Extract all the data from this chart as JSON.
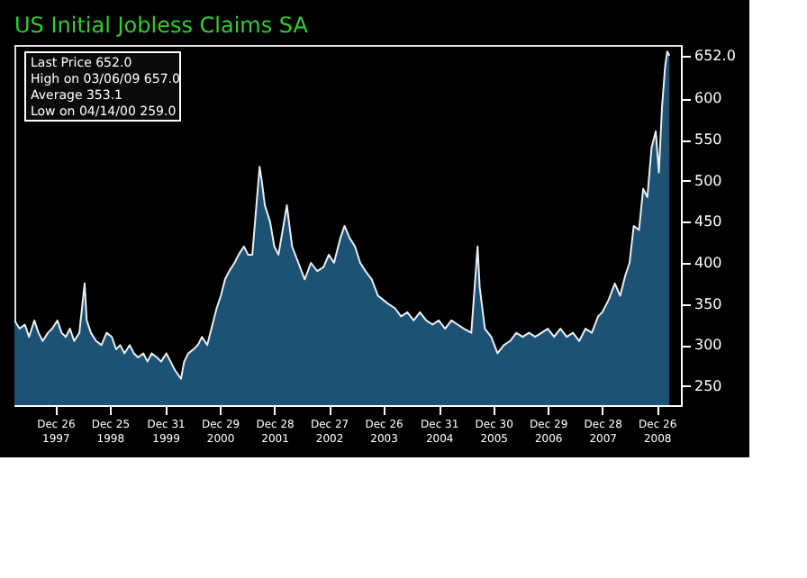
{
  "chart_data": {
    "type": "area",
    "title": "US Initial Jobless Claims SA",
    "annotations": [
      "Last Price 652.0",
      "High on 03/06/09 657.0",
      "Average 353.1",
      "Low on 04/14/00 259.0"
    ],
    "x": [
      "1997-03-28",
      "1997-05-02",
      "1997-06-06",
      "1997-07-04",
      "1997-08-08",
      "1997-09-05",
      "1997-10-03",
      "1997-11-07",
      "1997-12-05",
      "1998-01-09",
      "1998-02-06",
      "1998-03-06",
      "1998-04-03",
      "1998-05-01",
      "1998-06-05",
      "1998-07-10",
      "1998-07-24",
      "1998-08-21",
      "1998-09-25",
      "1998-10-30",
      "1998-12-04",
      "1999-01-08",
      "1999-02-05",
      "1999-03-05",
      "1999-04-02",
      "1999-05-07",
      "1999-06-04",
      "1999-07-02",
      "1999-08-06",
      "1999-09-03",
      "1999-10-01",
      "1999-11-05",
      "1999-12-03",
      "2000-01-07",
      "2000-02-04",
      "2000-03-03",
      "2000-04-14",
      "2000-05-05",
      "2000-06-02",
      "2000-07-07",
      "2000-08-04",
      "2000-09-01",
      "2000-10-06",
      "2000-11-03",
      "2000-12-08",
      "2001-01-05",
      "2001-02-02",
      "2001-03-02",
      "2001-04-06",
      "2001-05-04",
      "2001-06-08",
      "2001-07-06",
      "2001-08-03",
      "2001-09-21",
      "2001-10-05",
      "2001-10-26",
      "2001-11-30",
      "2001-12-28",
      "2002-01-25",
      "2002-03-22",
      "2002-04-26",
      "2002-06-07",
      "2002-07-19",
      "2002-08-30",
      "2002-10-11",
      "2002-11-22",
      "2002-12-27",
      "2003-01-31",
      "2003-03-14",
      "2003-04-11",
      "2003-05-16",
      "2003-06-20",
      "2003-07-25",
      "2003-08-29",
      "2003-10-10",
      "2003-11-21",
      "2003-12-26",
      "2004-01-30",
      "2004-03-12",
      "2004-04-23",
      "2004-06-04",
      "2004-07-16",
      "2004-08-27",
      "2004-10-08",
      "2004-11-19",
      "2004-12-31",
      "2005-02-11",
      "2005-03-25",
      "2005-05-06",
      "2005-06-17",
      "2005-08-05",
      "2005-09-16",
      "2005-09-30",
      "2005-11-04",
      "2005-12-16",
      "2006-01-27",
      "2006-03-10",
      "2006-04-21",
      "2006-06-02",
      "2006-07-14",
      "2006-08-25",
      "2006-10-06",
      "2006-11-17",
      "2006-12-29",
      "2007-02-09",
      "2007-03-23",
      "2007-05-04",
      "2007-06-15",
      "2007-07-27",
      "2007-09-07",
      "2007-10-19",
      "2007-11-30",
      "2007-12-28",
      "2008-02-08",
      "2008-03-21",
      "2008-04-25",
      "2008-05-30",
      "2008-06-27",
      "2008-07-25",
      "2008-08-29",
      "2008-09-26",
      "2008-10-24",
      "2008-11-21",
      "2008-12-19",
      "2009-01-09",
      "2009-01-30",
      "2009-02-20",
      "2009-03-06",
      "2009-03-20"
    ],
    "series": [
      {
        "color": "#1e5274",
        "values": [
          330,
          320,
          325,
          310,
          330,
          315,
          305,
          315,
          320,
          330,
          315,
          310,
          320,
          305,
          315,
          375,
          330,
          315,
          305,
          300,
          315,
          310,
          295,
          300,
          290,
          300,
          290,
          285,
          290,
          280,
          290,
          285,
          280,
          290,
          280,
          270,
          259,
          280,
          290,
          295,
          300,
          310,
          300,
          320,
          345,
          360,
          380,
          390,
          400,
          410,
          420,
          410,
          410,
          517,
          500,
          470,
          450,
          420,
          410,
          470,
          420,
          400,
          380,
          400,
          390,
          395,
          410,
          400,
          430,
          445,
          430,
          420,
          400,
          390,
          380,
          360,
          355,
          350,
          345,
          335,
          340,
          330,
          340,
          330,
          325,
          330,
          320,
          330,
          325,
          320,
          315,
          420,
          370,
          320,
          310,
          290,
          300,
          305,
          315,
          310,
          315,
          310,
          315,
          320,
          310,
          320,
          310,
          315,
          305,
          320,
          315,
          335,
          340,
          355,
          375,
          360,
          385,
          400,
          445,
          440,
          490,
          480,
          540,
          560,
          510,
          590,
          640,
          657,
          652
        ]
      }
    ],
    "xlim": [
      "1997-03-28",
      "2009-06-05"
    ],
    "xticks": [
      {
        "value": "1997-12-26",
        "label": "Dec 26\n1997"
      },
      {
        "value": "1998-12-25",
        "label": "Dec 25\n1998"
      },
      {
        "value": "1999-12-31",
        "label": "Dec 31\n1999"
      },
      {
        "value": "2000-12-29",
        "label": "Dec 29\n2000"
      },
      {
        "value": "2001-12-28",
        "label": "Dec 28\n2001"
      },
      {
        "value": "2002-12-27",
        "label": "Dec 27\n2002"
      },
      {
        "value": "2003-12-26",
        "label": "Dec 26\n2003"
      },
      {
        "value": "2004-12-31",
        "label": "Dec 31\n2004"
      },
      {
        "value": "2005-12-30",
        "label": "Dec 30\n2005"
      },
      {
        "value": "2006-12-29",
        "label": "Dec 29\n2006"
      },
      {
        "value": "2007-12-28",
        "label": "Dec 28\n2007"
      },
      {
        "value": "2008-12-26",
        "label": "Dec 26\n2008"
      }
    ],
    "ylim": [
      227,
      665
    ],
    "yticks": [
      250,
      300,
      350,
      400,
      450,
      500,
      550,
      600,
      {
        "value": 652,
        "label": "652.0"
      }
    ],
    "grid": false,
    "legend": false
  }
}
